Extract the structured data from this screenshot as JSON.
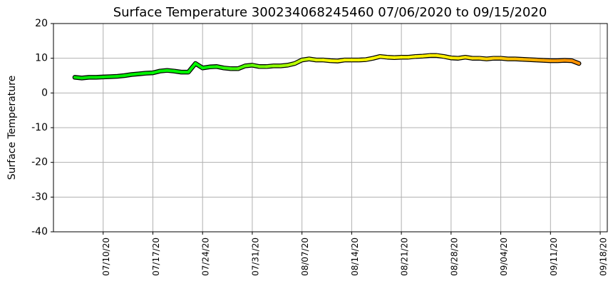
{
  "chart_data": {
    "type": "scatter-line",
    "title": "Surface Temperature 300234068245460  07/06/2020 to 09/15/2020",
    "y_label": "Surface Temperature",
    "x": [
      "2020-07-06",
      "2020-07-07",
      "2020-07-08",
      "2020-07-09",
      "2020-07-10",
      "2020-07-11",
      "2020-07-12",
      "2020-07-13",
      "2020-07-14",
      "2020-07-15",
      "2020-07-16",
      "2020-07-17",
      "2020-07-18",
      "2020-07-19",
      "2020-07-20",
      "2020-07-21",
      "2020-07-22",
      "2020-07-23",
      "2020-07-24",
      "2020-07-25",
      "2020-07-26",
      "2020-07-27",
      "2020-07-28",
      "2020-07-29",
      "2020-07-30",
      "2020-07-31",
      "2020-08-01",
      "2020-08-02",
      "2020-08-03",
      "2020-08-04",
      "2020-08-05",
      "2020-08-06",
      "2020-08-07",
      "2020-08-08",
      "2020-08-09",
      "2020-08-10",
      "2020-08-11",
      "2020-08-12",
      "2020-08-13",
      "2020-08-14",
      "2020-08-15",
      "2020-08-16",
      "2020-08-17",
      "2020-08-18",
      "2020-08-19",
      "2020-08-20",
      "2020-08-21",
      "2020-08-22",
      "2020-08-23",
      "2020-08-24",
      "2020-08-25",
      "2020-08-26",
      "2020-08-27",
      "2020-08-28",
      "2020-08-29",
      "2020-08-30",
      "2020-08-31",
      "2020-09-01",
      "2020-09-02",
      "2020-09-03",
      "2020-09-04",
      "2020-09-05",
      "2020-09-06",
      "2020-09-07",
      "2020-09-08",
      "2020-09-09",
      "2020-09-10",
      "2020-09-11",
      "2020-09-12",
      "2020-09-13",
      "2020-09-14",
      "2020-09-15"
    ],
    "values": [
      4.5,
      4.3,
      4.5,
      4.5,
      4.6,
      4.7,
      4.8,
      5.0,
      5.3,
      5.5,
      5.7,
      5.8,
      6.3,
      6.5,
      6.3,
      6.0,
      6.0,
      8.5,
      7.2,
      7.5,
      7.6,
      7.2,
      7.0,
      7.0,
      7.8,
      8.0,
      7.6,
      7.6,
      7.8,
      7.8,
      8.0,
      8.5,
      9.5,
      9.8,
      9.5,
      9.5,
      9.3,
      9.2,
      9.5,
      9.5,
      9.5,
      9.6,
      10.0,
      10.5,
      10.3,
      10.2,
      10.3,
      10.3,
      10.5,
      10.6,
      10.8,
      10.8,
      10.5,
      10.1,
      10.0,
      10.3,
      10.0,
      10.0,
      9.8,
      10.0,
      10.0,
      9.8,
      9.8,
      9.7,
      9.6,
      9.5,
      9.4,
      9.3,
      9.3,
      9.4,
      9.3,
      8.5
    ],
    "colormap": [
      "#00e600",
      "#00ff00",
      "#ffff00",
      "#ffee00",
      "#ff8c00"
    ],
    "xlim": [
      "2020-07-03",
      "2020-09-19"
    ],
    "xticks": [
      {
        "value": "2020-07-10",
        "label": "07/10/20"
      },
      {
        "value": "2020-07-17",
        "label": "07/17/20"
      },
      {
        "value": "2020-07-24",
        "label": "07/24/20"
      },
      {
        "value": "2020-07-31",
        "label": "07/31/20"
      },
      {
        "value": "2020-08-07",
        "label": "08/07/20"
      },
      {
        "value": "2020-08-14",
        "label": "08/14/20"
      },
      {
        "value": "2020-08-21",
        "label": "08/21/20"
      },
      {
        "value": "2020-08-28",
        "label": "08/28/20"
      },
      {
        "value": "2020-09-04",
        "label": "09/04/20"
      },
      {
        "value": "2020-09-11",
        "label": "09/11/20"
      },
      {
        "value": "2020-09-18",
        "label": "09/18/20"
      }
    ],
    "ylim": [
      -40,
      20
    ],
    "yticks": [
      -40,
      -30,
      -20,
      -10,
      0,
      10,
      20
    ],
    "grid": true
  }
}
